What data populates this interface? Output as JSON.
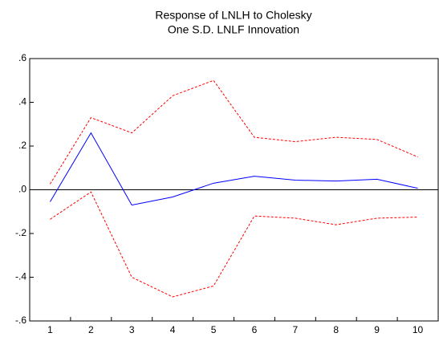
{
  "chart_data": {
    "type": "line",
    "title": "Response of LNLH to Cholesky",
    "subtitle": "One S.D. LNLF Innovation",
    "categories": [
      "1",
      "2",
      "3",
      "4",
      "5",
      "6",
      "7",
      "8",
      "9",
      "10"
    ],
    "series": [
      {
        "color": "#0000ff",
        "dashed": false,
        "values": [
          -0.055,
          0.26,
          -0.07,
          -0.033,
          0.03,
          0.062,
          0.044,
          0.04,
          0.048,
          0.007
        ]
      },
      {
        "color": "#ff0000",
        "dashed": true,
        "values": [
          0.026,
          0.33,
          0.26,
          0.43,
          0.5,
          0.24,
          0.22,
          0.24,
          0.23,
          0.15
        ]
      },
      {
        "color": "#ff0000",
        "dashed": true,
        "values": [
          -0.135,
          -0.01,
          -0.4,
          -0.49,
          -0.44,
          -0.12,
          -0.13,
          -0.16,
          -0.13,
          -0.125
        ]
      }
    ],
    "ylim": [
      -0.6,
      0.6
    ],
    "yticks": [
      {
        "value": 0.6,
        "label": ".6"
      },
      {
        "value": 0.4,
        "label": ".4"
      },
      {
        "value": 0.2,
        "label": ".2"
      },
      {
        "value": 0,
        "label": ".0"
      },
      {
        "value": -0.2,
        "label": "-.2"
      },
      {
        "value": -0.4,
        "label": "-.4"
      },
      {
        "value": -0.6,
        "label": "-.6"
      }
    ],
    "zero_line": true
  }
}
